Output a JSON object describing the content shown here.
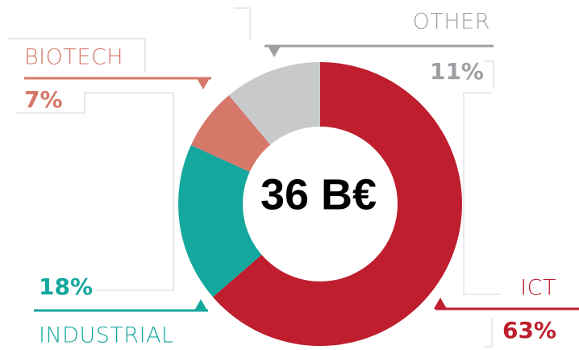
{
  "chart_data": {
    "type": "donut",
    "categories": [
      "ICT",
      "INDUSTRIAL",
      "BIOTECH",
      "OTHER"
    ],
    "values": [
      63,
      18,
      7,
      11
    ],
    "value_labels": [
      "63%",
      "18%",
      "7%",
      "11%"
    ],
    "colors": [
      "#be1e2d",
      "#14a79d",
      "#d5786a",
      "#c8c9cb"
    ],
    "center_label": "36 B€"
  }
}
